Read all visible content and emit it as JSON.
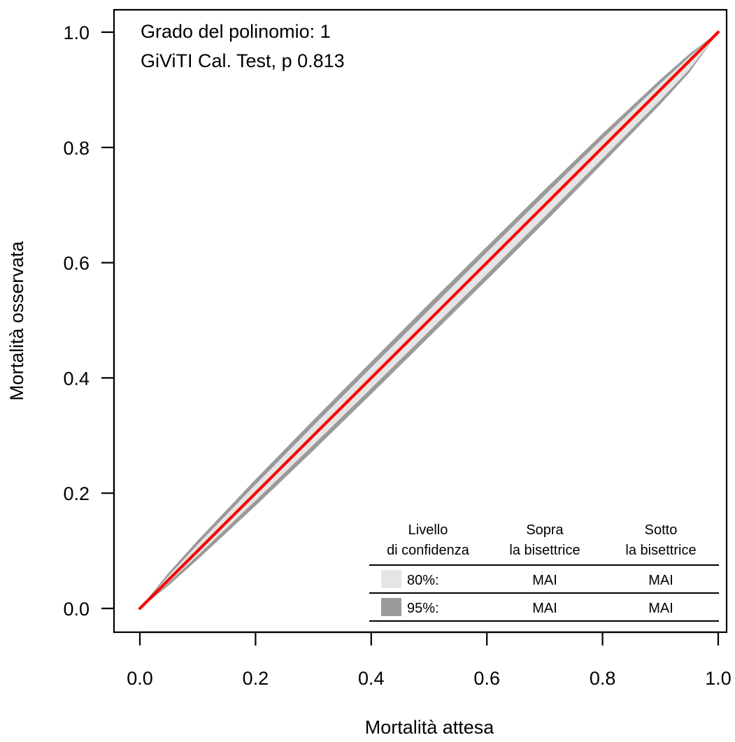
{
  "chart_data": {
    "type": "line",
    "xlabel": "Mortalità attesa",
    "ylabel": "Mortalità osservata",
    "xlim": [
      0,
      1
    ],
    "ylim": [
      0,
      1
    ],
    "x_ticks": [
      "0.0",
      "0.2",
      "0.4",
      "0.6",
      "0.8",
      "1.0"
    ],
    "y_ticks": [
      "0.0",
      "0.2",
      "0.4",
      "0.6",
      "0.8",
      "1.0"
    ],
    "annotations": [
      "Grado del polinomio: 1",
      "GiViTI Cal. Test, p 0.813"
    ],
    "series": [
      {
        "color": "#ff0000",
        "x": [
          0,
          0.1,
          0.2,
          0.3,
          0.4,
          0.5,
          0.6,
          0.7,
          0.8,
          0.9,
          1.0
        ],
        "y": [
          0,
          0.1,
          0.2,
          0.3,
          0.4,
          0.5,
          0.6,
          0.7,
          0.8,
          0.9,
          1.0
        ]
      }
    ],
    "bands": [
      {
        "level": "95%",
        "color": "#9a9a9a",
        "x": [
          0,
          0.05,
          0.1,
          0.2,
          0.3,
          0.4,
          0.5,
          0.6,
          0.7,
          0.8,
          0.9,
          0.95,
          1.0
        ],
        "upper": [
          0,
          0.062,
          0.118,
          0.224,
          0.327,
          0.428,
          0.529,
          0.628,
          0.727,
          0.824,
          0.918,
          0.962,
          1.0
        ],
        "lower": [
          0,
          0.04,
          0.085,
          0.178,
          0.274,
          0.372,
          0.471,
          0.57,
          0.67,
          0.772,
          0.875,
          0.93,
          1.0
        ]
      },
      {
        "level": "80%",
        "color": "#e6e4e4",
        "x": [
          0,
          0.05,
          0.1,
          0.2,
          0.3,
          0.4,
          0.5,
          0.6,
          0.7,
          0.8,
          0.9,
          0.95,
          1.0
        ],
        "upper": [
          0,
          0.057,
          0.111,
          0.215,
          0.317,
          0.418,
          0.518,
          0.618,
          0.717,
          0.815,
          0.911,
          0.957,
          1.0
        ],
        "lower": [
          0,
          0.045,
          0.092,
          0.187,
          0.284,
          0.382,
          0.481,
          0.58,
          0.68,
          0.781,
          0.882,
          0.935,
          1.0
        ]
      }
    ],
    "legend": {
      "placement": "bottom-right",
      "headers": [
        [
          "Livello",
          "di confidenza"
        ],
        [
          "Sopra",
          "la bisettrice"
        ],
        [
          "Sotto",
          "la bisettrice"
        ]
      ],
      "rows": [
        {
          "swatch_color": "#e6e4e4",
          "level": "80%:",
          "above": "MAI",
          "below": "MAI"
        },
        {
          "swatch_color": "#9a9a9a",
          "level": "95%:",
          "above": "MAI",
          "below": "MAI"
        }
      ]
    }
  }
}
